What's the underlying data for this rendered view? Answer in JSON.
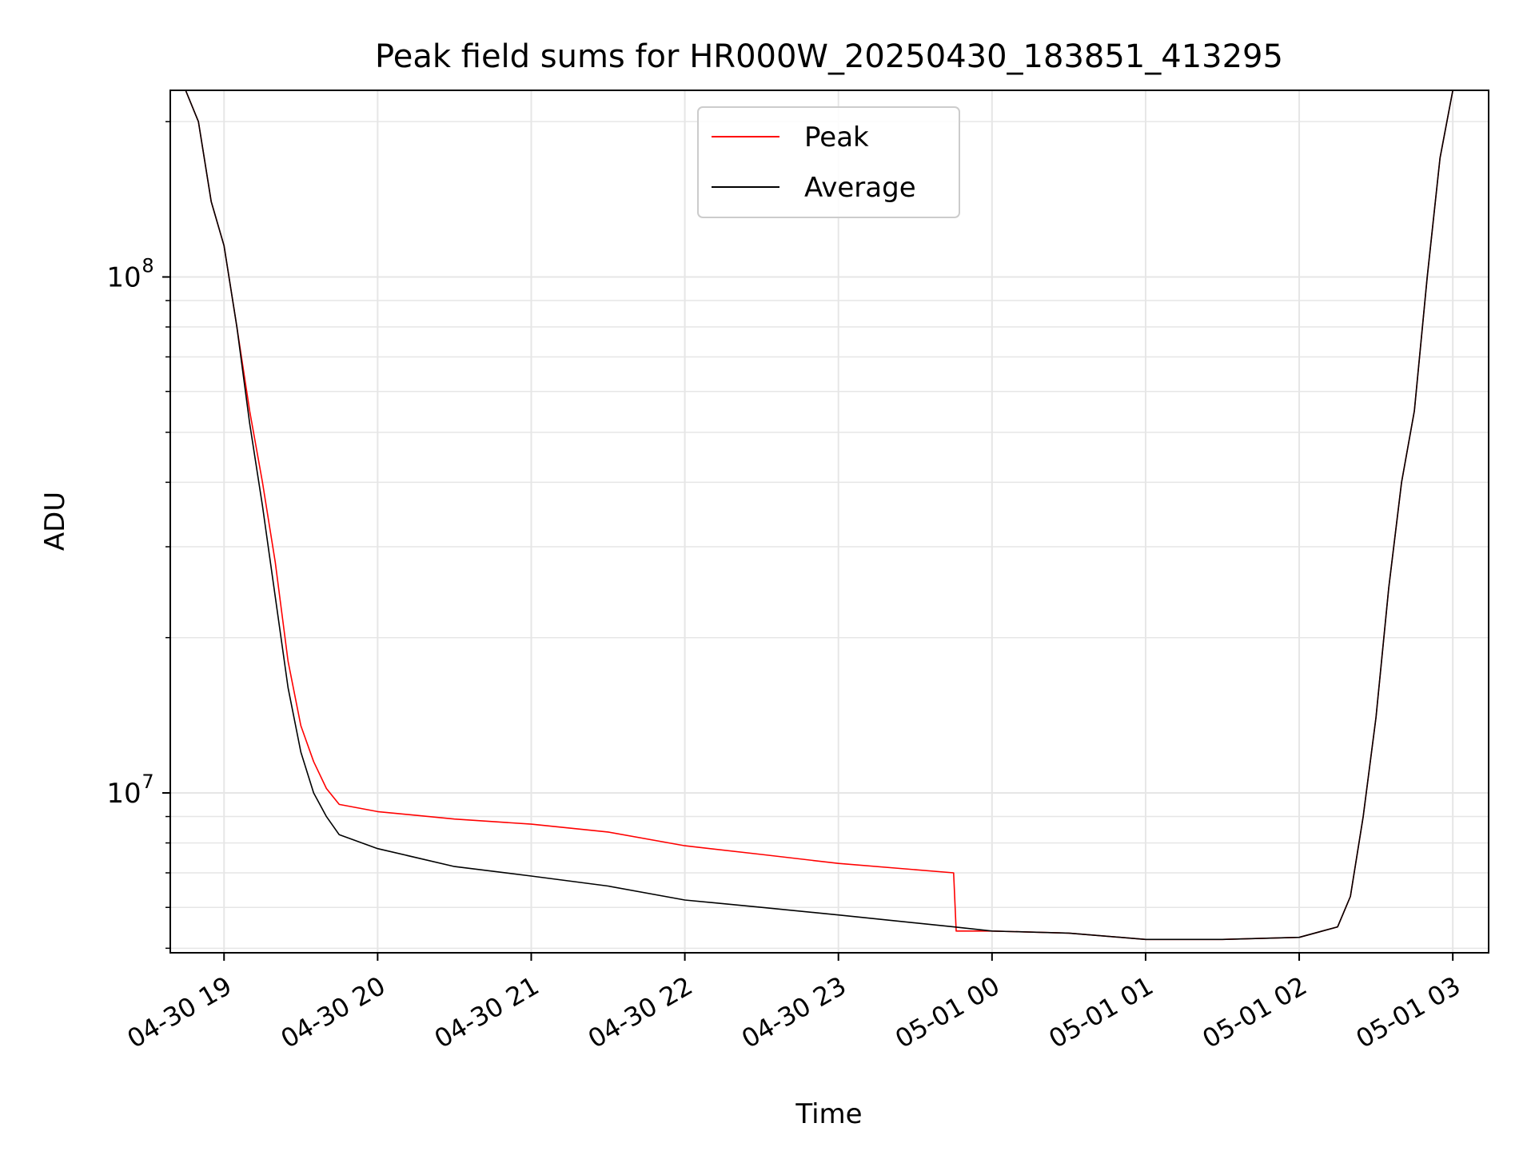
{
  "chart_data": {
    "type": "line",
    "title": "Peak field sums for HR000W_20250430_183851_413295",
    "xlabel": "Time",
    "ylabel": "ADU",
    "yscale": "log",
    "grid": true,
    "legend_position": "top-center",
    "xlim": [
      "2025-04-30 18:39",
      "2025-05-01 03:14"
    ],
    "ylim": [
      4900000,
      230000000
    ],
    "x_ticks": [
      "04-30 19",
      "04-30 20",
      "04-30 21",
      "04-30 22",
      "04-30 23",
      "05-01 00",
      "05-01 01",
      "05-01 02",
      "05-01 03"
    ],
    "y_ticks": [
      {
        "base": "10",
        "exp": "7",
        "value": 10000000
      },
      {
        "base": "10",
        "exp": "8",
        "value": 100000000
      }
    ],
    "series": [
      {
        "name": "Peak",
        "color": "#ff0000",
        "points": [
          [
            "2025-04-30 18:45",
            230000000
          ],
          [
            "2025-04-30 18:50",
            200000000
          ],
          [
            "2025-04-30 18:55",
            140000000
          ],
          [
            "2025-04-30 19:00",
            115000000
          ],
          [
            "2025-04-30 19:05",
            80000000
          ],
          [
            "2025-04-30 19:10",
            55000000
          ],
          [
            "2025-04-30 19:15",
            40000000
          ],
          [
            "2025-04-30 19:20",
            28000000
          ],
          [
            "2025-04-30 19:25",
            18000000
          ],
          [
            "2025-04-30 19:30",
            13500000
          ],
          [
            "2025-04-30 19:35",
            11500000
          ],
          [
            "2025-04-30 19:40",
            10200000
          ],
          [
            "2025-04-30 19:45",
            9500000
          ],
          [
            "2025-04-30 20:00",
            9200000
          ],
          [
            "2025-04-30 20:30",
            8900000
          ],
          [
            "2025-04-30 21:00",
            8700000
          ],
          [
            "2025-04-30 21:30",
            8400000
          ],
          [
            "2025-04-30 22:00",
            7900000
          ],
          [
            "2025-04-30 22:30",
            7600000
          ],
          [
            "2025-04-30 23:00",
            7300000
          ],
          [
            "2025-04-30 23:45",
            7000000
          ],
          [
            "2025-04-30 23:46",
            5400000
          ],
          [
            "2025-05-01 00:00",
            5400000
          ],
          [
            "2025-05-01 00:30",
            5350000
          ],
          [
            "2025-05-01 01:00",
            5200000
          ],
          [
            "2025-05-01 01:30",
            5200000
          ],
          [
            "2025-05-01 02:00",
            5250000
          ],
          [
            "2025-05-01 02:15",
            5500000
          ],
          [
            "2025-05-01 02:20",
            6300000
          ],
          [
            "2025-05-01 02:25",
            9000000
          ],
          [
            "2025-05-01 02:30",
            14000000
          ],
          [
            "2025-05-01 02:35",
            25000000
          ],
          [
            "2025-05-01 02:40",
            40000000
          ],
          [
            "2025-05-01 02:45",
            55000000
          ],
          [
            "2025-05-01 02:50",
            100000000
          ],
          [
            "2025-05-01 02:55",
            170000000
          ],
          [
            "2025-05-01 03:00",
            230000000
          ]
        ]
      },
      {
        "name": "Average",
        "color": "#000000",
        "points": [
          [
            "2025-04-30 18:45",
            230000000
          ],
          [
            "2025-04-30 18:50",
            200000000
          ],
          [
            "2025-04-30 18:55",
            140000000
          ],
          [
            "2025-04-30 19:00",
            115000000
          ],
          [
            "2025-04-30 19:05",
            80000000
          ],
          [
            "2025-04-30 19:10",
            52000000
          ],
          [
            "2025-04-30 19:15",
            36000000
          ],
          [
            "2025-04-30 19:20",
            24000000
          ],
          [
            "2025-04-30 19:25",
            16000000
          ],
          [
            "2025-04-30 19:30",
            12000000
          ],
          [
            "2025-04-30 19:35",
            10000000
          ],
          [
            "2025-04-30 19:40",
            9000000
          ],
          [
            "2025-04-30 19:45",
            8300000
          ],
          [
            "2025-04-30 20:00",
            7800000
          ],
          [
            "2025-04-30 20:30",
            7200000
          ],
          [
            "2025-04-30 21:00",
            6900000
          ],
          [
            "2025-04-30 21:30",
            6600000
          ],
          [
            "2025-04-30 22:00",
            6200000
          ],
          [
            "2025-04-30 22:30",
            6000000
          ],
          [
            "2025-04-30 23:00",
            5800000
          ],
          [
            "2025-04-30 23:45",
            5500000
          ],
          [
            "2025-05-01 00:00",
            5400000
          ],
          [
            "2025-05-01 00:30",
            5350000
          ],
          [
            "2025-05-01 01:00",
            5200000
          ],
          [
            "2025-05-01 01:30",
            5200000
          ],
          [
            "2025-05-01 02:00",
            5250000
          ],
          [
            "2025-05-01 02:15",
            5500000
          ],
          [
            "2025-05-01 02:20",
            6300000
          ],
          [
            "2025-05-01 02:25",
            9000000
          ],
          [
            "2025-05-01 02:30",
            14000000
          ],
          [
            "2025-05-01 02:35",
            25000000
          ],
          [
            "2025-05-01 02:40",
            40000000
          ],
          [
            "2025-05-01 02:45",
            55000000
          ],
          [
            "2025-05-01 02:50",
            100000000
          ],
          [
            "2025-05-01 02:55",
            170000000
          ],
          [
            "2025-05-01 03:00",
            230000000
          ]
        ]
      }
    ]
  }
}
